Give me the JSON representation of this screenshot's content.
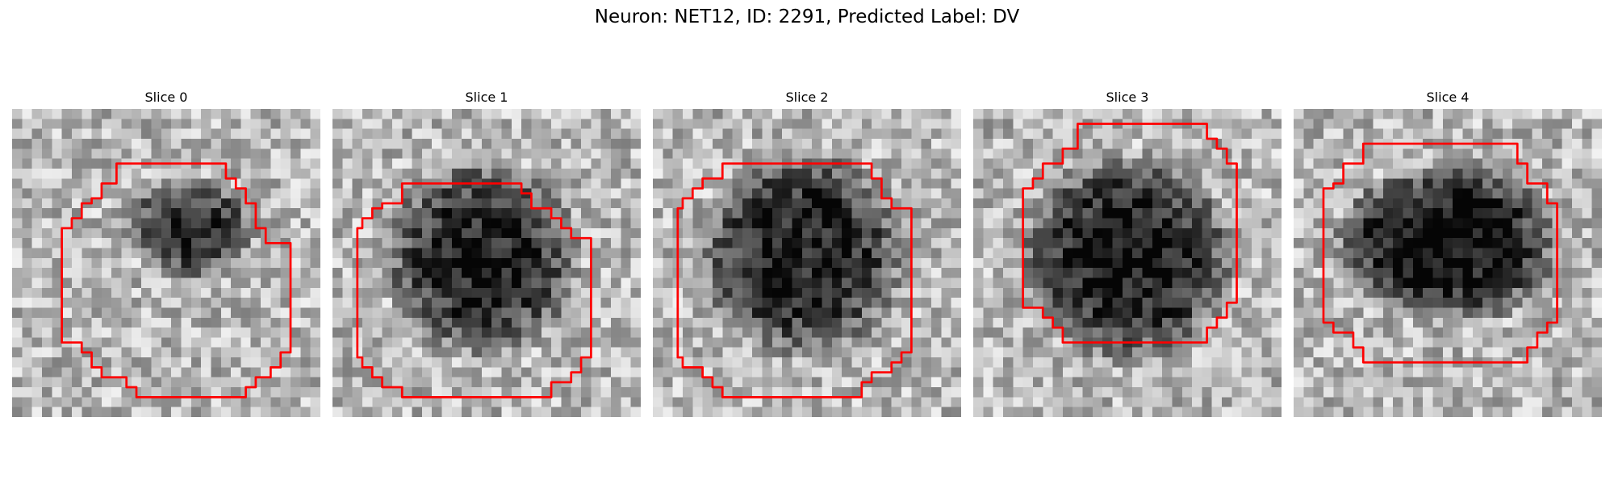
{
  "figure": {
    "title": "Neuron: NET12, ID: 2291, Predicted Label: DV",
    "contour_color": "#ff0000",
    "grid_size": 31
  },
  "panels": [
    {
      "title": "Slice 0",
      "blob": {
        "cx": 18,
        "cy": 12,
        "rx": 7,
        "ry": 5.5,
        "strength": 0.55
      }
    },
    {
      "title": "Slice 1",
      "blob": {
        "cx": 15,
        "cy": 15,
        "rx": 10.5,
        "ry": 10.5,
        "strength": 0.6
      }
    },
    {
      "title": "Slice 2",
      "blob": {
        "cx": 15,
        "cy": 14.5,
        "rx": 11,
        "ry": 11,
        "strength": 0.62
      }
    },
    {
      "title": "Slice 3",
      "blob": {
        "cx": 15.5,
        "cy": 15,
        "rx": 11.5,
        "ry": 11,
        "strength": 0.65
      }
    },
    {
      "title": "Slice 4",
      "blob": {
        "cx": 15.5,
        "cy": 13.5,
        "rx": 12,
        "ry": 8.5,
        "strength": 0.7
      }
    }
  ]
}
